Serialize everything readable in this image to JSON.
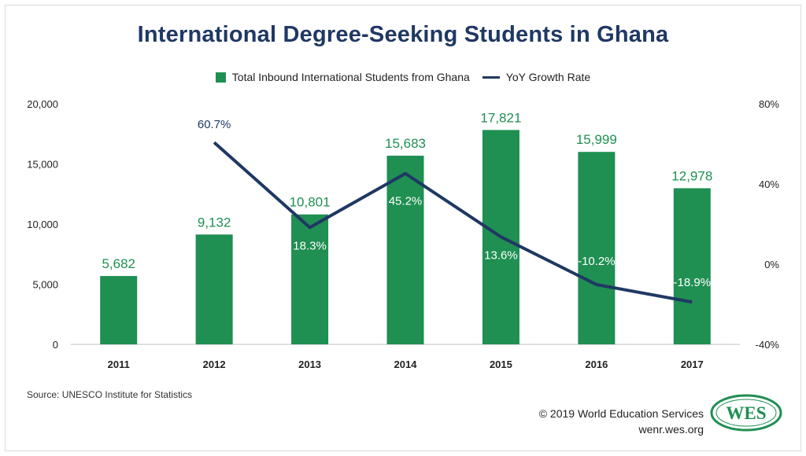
{
  "title": "International Degree-Seeking Students in Ghana",
  "legend": {
    "bar_label": "Total Inbound International Students from Ghana",
    "line_label": "YoY Growth Rate"
  },
  "colors": {
    "bar": "#1f8f52",
    "line": "#1f3864",
    "bar_label": "#1f8f52",
    "title": "#1f3864"
  },
  "chart_data": {
    "type": "bar",
    "categories": [
      "2011",
      "2012",
      "2013",
      "2014",
      "2015",
      "2016",
      "2017"
    ],
    "series": [
      {
        "name": "Total Inbound International Students from Ghana",
        "type": "bar",
        "axis": "left",
        "values": [
          5682,
          9132,
          10801,
          15683,
          17821,
          15999,
          12978
        ],
        "labels": [
          "5,682",
          "9,132",
          "10,801",
          "15,683",
          "17,821",
          "15,999",
          "12,978"
        ]
      },
      {
        "name": "YoY Growth Rate",
        "type": "line",
        "axis": "right",
        "values": [
          null,
          60.7,
          18.3,
          45.2,
          13.6,
          -10.2,
          -18.9
        ],
        "labels": [
          "",
          "60.7%",
          "18.3%",
          "45.2%",
          "13.6%",
          "-10.2%",
          "-18.9%"
        ]
      }
    ],
    "y_left": {
      "min": 0,
      "max": 20000,
      "ticks": [
        "0",
        "5,000",
        "10,000",
        "15,000",
        "20,000"
      ]
    },
    "y_right": {
      "min": -40,
      "max": 80,
      "ticks": [
        "-40%",
        "0%",
        "40%",
        "80%"
      ]
    },
    "legend_position": "top-center",
    "grid": false
  },
  "source": "Source: UNESCO Institute for Statistics",
  "copyright_line1": "© 2019 World Education Services",
  "copyright_line2": "wenr.wes.org",
  "logo_text": "WES"
}
